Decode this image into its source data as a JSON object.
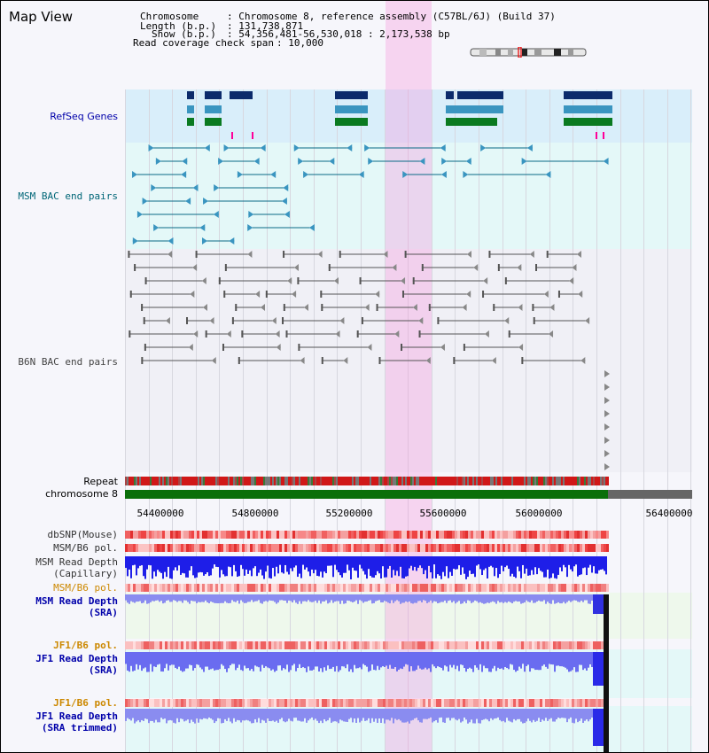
{
  "header": {
    "title": "Map View",
    "chromosome_label": "Chromosome",
    "chromosome_value": ": Chromosome 8, reference assembly (C57BL/6J) (Build 37)",
    "length_label": "Length (b.p.)",
    "length_value": ": 131,738,871",
    "show_label": "Show (b.p.)",
    "show_value": ": 54,356,481-56,530,018 : 2,173,538 bp",
    "coverage_label": "Read coverage check span",
    "coverage_value": ": 10,000"
  },
  "tracks": {
    "refseq": "RefSeq Genes",
    "msm_bac": "MSM BAC end pairs",
    "b6n_bac": "B6N BAC end pairs",
    "repeat": "Repeat",
    "chromosome": "chromosome 8",
    "dbsnp": "dbSNP(Mouse)",
    "msm_b6_pol_1": "MSM/B6 pol.",
    "msm_read_depth_cap_1": "MSM Read Depth",
    "msm_read_depth_cap_2": "(Capillary)",
    "msm_b6_pol_2": "MSM/B6 pol.",
    "msm_read_depth_sra_1": "MSM Read Depth",
    "msm_read_depth_sra_2": "(SRA)",
    "jf1_b6_pol_1": "JF1/B6 pol.",
    "jf1_read_depth_sra_1": "JF1 Read Depth",
    "jf1_read_depth_sra_2": "(SRA)",
    "jf1_b6_pol_2": "JF1/B6 pol.",
    "jf1_read_depth_trim_1": "JF1 Read Depth",
    "jf1_read_depth_trim_2": "(SRA trimmed)"
  },
  "axis": {
    "ticks": [
      "54400000",
      "54800000",
      "55200000",
      "55600000",
      "56000000",
      "56400000"
    ]
  },
  "colors": {
    "refseq_label": "#0000aa",
    "msm_label": "#006677",
    "b6n_label": "#444444",
    "orange_label": "#cc8800",
    "blue_label": "#0000aa",
    "highlight": "#f5b0e4"
  }
}
